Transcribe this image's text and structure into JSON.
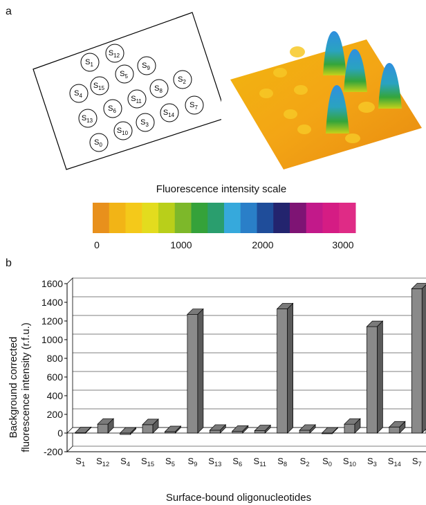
{
  "panel_a": {
    "label": "a",
    "spots": [
      {
        "name": "S",
        "sub": "1"
      },
      {
        "name": "S",
        "sub": "12"
      },
      {
        "name": "S",
        "sub": "9"
      },
      {
        "name": "S",
        "sub": "5"
      },
      {
        "name": "S",
        "sub": "15"
      },
      {
        "name": "S",
        "sub": "2"
      },
      {
        "name": "S",
        "sub": "4"
      },
      {
        "name": "S",
        "sub": "8"
      },
      {
        "name": "S",
        "sub": "11"
      },
      {
        "name": "S",
        "sub": "6"
      },
      {
        "name": "S",
        "sub": "13"
      },
      {
        "name": "S",
        "sub": "7"
      },
      {
        "name": "S",
        "sub": "14"
      },
      {
        "name": "S",
        "sub": "3"
      },
      {
        "name": "S",
        "sub": "10"
      },
      {
        "name": "S",
        "sub": "0"
      }
    ],
    "scale": {
      "title": "Fluorescence intensity scale",
      "colors": [
        "#e8901c",
        "#f2b416",
        "#f4c91a",
        "#e3dc1e",
        "#b9cf1a",
        "#7db82a",
        "#35a23a",
        "#2a9e6e",
        "#36a9dc",
        "#2a7fc8",
        "#1f4d9a",
        "#23246e",
        "#7e1474",
        "#c2198a",
        "#d51c84",
        "#df2b86"
      ],
      "ticks": [
        "0",
        "1000",
        "2000",
        "3000"
      ]
    }
  },
  "panel_b": {
    "label": "b",
    "chart_data": {
      "type": "bar",
      "ylabel_line1": "Background corrected",
      "ylabel_line2": "fluorescence intensity (r.f.u.)",
      "xlabel": "Surface-bound oligonucleotides",
      "ylim": [
        -200,
        1600
      ],
      "yticks": [
        -200,
        0,
        200,
        400,
        600,
        800,
        1000,
        1200,
        1400,
        1600
      ],
      "categories": [
        {
          "name": "S",
          "sub": "1"
        },
        {
          "name": "S",
          "sub": "12"
        },
        {
          "name": "S",
          "sub": "4"
        },
        {
          "name": "S",
          "sub": "15"
        },
        {
          "name": "S",
          "sub": "5"
        },
        {
          "name": "S",
          "sub": "9"
        },
        {
          "name": "S",
          "sub": "13"
        },
        {
          "name": "S",
          "sub": "6"
        },
        {
          "name": "S",
          "sub": "11"
        },
        {
          "name": "S",
          "sub": "8"
        },
        {
          "name": "S",
          "sub": "2"
        },
        {
          "name": "S",
          "sub": "0"
        },
        {
          "name": "S",
          "sub": "10"
        },
        {
          "name": "S",
          "sub": "3"
        },
        {
          "name": "S",
          "sub": "14"
        },
        {
          "name": "S",
          "sub": "7"
        }
      ],
      "values": [
        5,
        95,
        -15,
        90,
        15,
        1270,
        30,
        20,
        25,
        1330,
        30,
        -5,
        95,
        1140,
        65,
        1545
      ],
      "grid": true
    }
  }
}
